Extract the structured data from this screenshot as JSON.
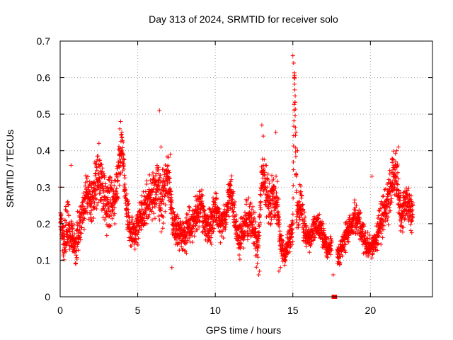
{
  "chart_data": {
    "type": "scatter",
    "title": "Day 313 of 2024, SRMTID for receiver solo",
    "xlabel": "GPS time / hours",
    "ylabel": "SRMTID / TECUs",
    "xlim": [
      0,
      24
    ],
    "ylim": [
      0,
      0.7
    ],
    "x_ticks": [
      0,
      5,
      10,
      15,
      20
    ],
    "x_tick_labels": [
      "0",
      "5",
      "10",
      "15",
      "20"
    ],
    "y_ticks": [
      0,
      0.1,
      0.2,
      0.3,
      0.4,
      0.5,
      0.6,
      0.7
    ],
    "y_tick_labels": [
      "0",
      "0.1",
      "0.2",
      "0.3",
      "0.4",
      "0.5",
      "0.6",
      "0.7"
    ],
    "grid": true,
    "marker": "+",
    "color": "#ff0000",
    "series": [
      {
        "name": "SRMTID",
        "x": [
          0.0,
          0.25,
          0.5,
          0.75,
          1.0,
          1.25,
          1.5,
          1.75,
          2.0,
          2.25,
          2.5,
          2.75,
          3.0,
          3.25,
          3.5,
          3.75,
          4.0,
          4.25,
          4.5,
          4.75,
          5.0,
          5.25,
          5.5,
          5.75,
          6.0,
          6.25,
          6.5,
          6.75,
          7.0,
          7.25,
          7.5,
          7.75,
          8.0,
          8.25,
          8.5,
          8.75,
          9.0,
          9.25,
          9.5,
          9.75,
          10.0,
          10.25,
          10.5,
          10.75,
          11.0,
          11.25,
          11.5,
          11.75,
          12.0,
          12.25,
          12.5,
          12.75,
          13.0,
          13.25,
          13.5,
          13.75,
          14.0,
          14.25,
          14.5,
          14.75,
          15.0,
          15.1,
          15.2,
          15.25,
          15.5,
          15.75,
          16.0,
          16.25,
          16.5,
          16.75,
          17.0,
          17.25,
          17.5,
          18.0,
          18.25,
          18.5,
          18.75,
          19.0,
          19.25,
          19.5,
          19.75,
          20.0,
          20.25,
          20.5,
          20.75,
          21.0,
          21.25,
          21.5,
          21.75,
          22.0,
          22.25,
          22.5,
          22.75
        ],
        "y": [
          0.21,
          0.17,
          0.2,
          0.16,
          0.14,
          0.19,
          0.25,
          0.28,
          0.26,
          0.3,
          0.33,
          0.31,
          0.24,
          0.27,
          0.26,
          0.35,
          0.42,
          0.24,
          0.19,
          0.17,
          0.2,
          0.23,
          0.25,
          0.27,
          0.29,
          0.31,
          0.25,
          0.29,
          0.33,
          0.2,
          0.18,
          0.17,
          0.16,
          0.19,
          0.2,
          0.22,
          0.24,
          0.23,
          0.18,
          0.2,
          0.25,
          0.21,
          0.2,
          0.24,
          0.3,
          0.21,
          0.16,
          0.17,
          0.2,
          0.22,
          0.18,
          0.12,
          0.34,
          0.29,
          0.26,
          0.28,
          0.24,
          0.14,
          0.11,
          0.16,
          0.18,
          0.62,
          0.38,
          0.2,
          0.27,
          0.19,
          0.15,
          0.18,
          0.2,
          0.19,
          0.16,
          0.13,
          0.14,
          0.12,
          0.15,
          0.18,
          0.2,
          0.22,
          0.2,
          0.17,
          0.14,
          0.13,
          0.15,
          0.18,
          0.21,
          0.25,
          0.28,
          0.35,
          0.3,
          0.22,
          0.26,
          0.24,
          0.22
        ],
        "spread": [
          0.06,
          0.07,
          0.08,
          0.06,
          0.06,
          0.06,
          0.07,
          0.07,
          0.07,
          0.07,
          0.08,
          0.08,
          0.08,
          0.07,
          0.07,
          0.08,
          0.06,
          0.06,
          0.06,
          0.05,
          0.06,
          0.06,
          0.06,
          0.07,
          0.07,
          0.08,
          0.08,
          0.07,
          0.06,
          0.06,
          0.05,
          0.05,
          0.05,
          0.06,
          0.06,
          0.06,
          0.06,
          0.06,
          0.06,
          0.06,
          0.06,
          0.05,
          0.05,
          0.06,
          0.06,
          0.05,
          0.05,
          0.05,
          0.06,
          0.07,
          0.07,
          0.05,
          0.08,
          0.07,
          0.06,
          0.06,
          0.07,
          0.04,
          0.03,
          0.04,
          0.05,
          0.04,
          0.06,
          0.06,
          0.06,
          0.05,
          0.04,
          0.04,
          0.04,
          0.04,
          0.04,
          0.03,
          0.04,
          0.04,
          0.04,
          0.04,
          0.04,
          0.04,
          0.05,
          0.04,
          0.04,
          0.03,
          0.04,
          0.05,
          0.06,
          0.06,
          0.07,
          0.07,
          0.07,
          0.06,
          0.06,
          0.05,
          0.05
        ],
        "peaks": [
          {
            "x": 0.0,
            "y": 0.3
          },
          {
            "x": 0.7,
            "y": 0.36
          },
          {
            "x": 2.5,
            "y": 0.42
          },
          {
            "x": 3.9,
            "y": 0.48
          },
          {
            "x": 6.4,
            "y": 0.51
          },
          {
            "x": 6.5,
            "y": 0.41
          },
          {
            "x": 7.1,
            "y": 0.39
          },
          {
            "x": 13.0,
            "y": 0.47
          },
          {
            "x": 13.1,
            "y": 0.44
          },
          {
            "x": 13.9,
            "y": 0.45
          },
          {
            "x": 15.0,
            "y": 0.66
          },
          {
            "x": 15.05,
            "y": 0.64
          },
          {
            "x": 15.1,
            "y": 0.6
          },
          {
            "x": 15.15,
            "y": 0.55
          },
          {
            "x": 15.2,
            "y": 0.45
          },
          {
            "x": 15.3,
            "y": 0.4
          },
          {
            "x": 20.1,
            "y": 0.33
          },
          {
            "x": 21.8,
            "y": 0.41
          },
          {
            "x": 21.7,
            "y": 0.4
          },
          {
            "x": 12.8,
            "y": 0.06
          },
          {
            "x": 12.85,
            "y": 0.07
          },
          {
            "x": 14.1,
            "y": 0.07
          },
          {
            "x": 14.2,
            "y": 0.08
          },
          {
            "x": 7.2,
            "y": 0.08
          },
          {
            "x": 1.0,
            "y": 0.09
          },
          {
            "x": 17.6,
            "y": 0.06
          }
        ],
        "gap_marker": {
          "x_start": 17.5,
          "x_end": 17.85,
          "y": 0
        }
      }
    ]
  }
}
